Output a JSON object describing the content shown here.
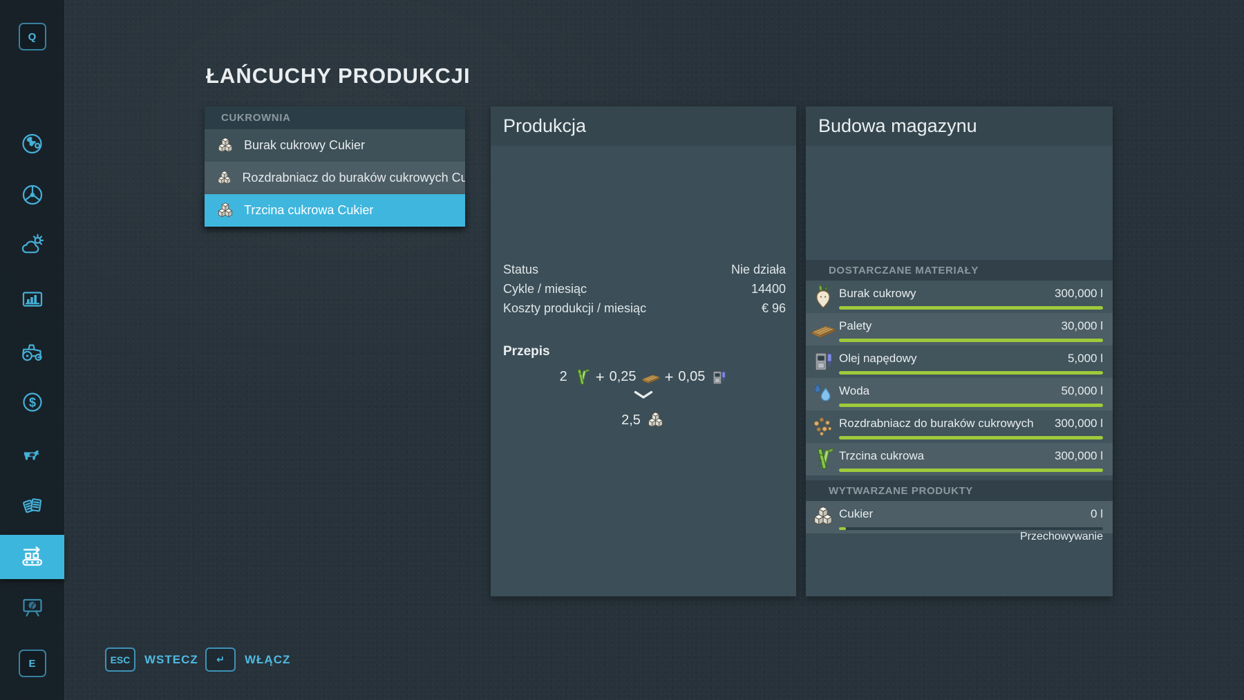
{
  "title": "ŁAŃCUCHY PRODUKCJI",
  "sidebar": {
    "top_key": "Q",
    "bottom_key": "E",
    "items": [
      {
        "icon": "q-key"
      },
      {
        "icon": "map-globe"
      },
      {
        "icon": "vehicles-steering-wheel"
      },
      {
        "icon": "weather-cloud-sun"
      },
      {
        "icon": "statistics-monitor"
      },
      {
        "icon": "garage-tractor"
      },
      {
        "icon": "finances-dollar"
      },
      {
        "icon": "animals-cow"
      },
      {
        "icon": "contracts-documents"
      },
      {
        "icon": "production-chains-conveyor",
        "active": true
      },
      {
        "icon": "construction-board"
      },
      {
        "icon": "e-key"
      }
    ]
  },
  "list": {
    "header": "CUKROWNIA",
    "items": [
      {
        "label": "Burak cukrowy Cukier",
        "icon": "sugar-icon",
        "selected": false
      },
      {
        "label": "Rozdrabniacz do buraków cukrowych Cukier",
        "icon": "sugar-icon",
        "selected": false
      },
      {
        "label": "Trzcina cukrowa Cukier",
        "icon": "sugar-icon",
        "selected": true
      }
    ]
  },
  "production": {
    "title": "Produkcja",
    "stats": [
      {
        "label": "Status",
        "value": "Nie działa"
      },
      {
        "label": "Cykle / miesiąc",
        "value": "14400"
      },
      {
        "label": "Koszty produkcji / miesiąc",
        "value": "€ 96"
      }
    ],
    "recipe": {
      "heading": "Przepis",
      "plus": "+",
      "inputs": [
        {
          "amount": "2",
          "icon": "sugarcane-icon"
        },
        {
          "amount": "0,25",
          "icon": "pallet-icon"
        },
        {
          "amount": "0,05",
          "icon": "diesel-icon"
        }
      ],
      "output": {
        "amount": "2,5",
        "icon": "sugar-icon"
      }
    }
  },
  "storage": {
    "title": "Budowa magazynu",
    "materials_header": "DOSTARCZANE MATERIAŁY",
    "materials": [
      {
        "label": "Burak cukrowy",
        "value": "300,000 l",
        "icon": "sugar-beet-icon",
        "fill_pct": 100
      },
      {
        "label": "Palety",
        "value": "30,000 l",
        "icon": "pallet-icon",
        "fill_pct": 100
      },
      {
        "label": "Olej napędowy",
        "value": "5,000 l",
        "icon": "diesel-icon",
        "fill_pct": 100
      },
      {
        "label": "Woda",
        "value": "50,000 l",
        "icon": "water-icon",
        "fill_pct": 100
      },
      {
        "label": "Rozdrabniacz do buraków cukrowych",
        "value": "300,000 l",
        "icon": "beet-pulp-icon",
        "fill_pct": 100
      },
      {
        "label": "Trzcina cukrowa",
        "value": "300,000 l",
        "icon": "sugarcane-icon",
        "fill_pct": 100
      }
    ],
    "products_header": "WYTWARZANE PRODUKTY",
    "product": {
      "label": "Cukier",
      "value": "0 l",
      "icon": "sugar-icon",
      "fill_pct": 2.5,
      "note": "Przechowywanie"
    }
  },
  "footer": {
    "back_key": "ESC",
    "back_label": "WSTECZ",
    "activate_key": "↵",
    "activate_label": "WŁĄCZ"
  },
  "colors": {
    "accent_cyan": "#3db6de",
    "icon_cyan": "#45b0d8",
    "bar_green": "#9ecb3b",
    "panel": "#3c4e57",
    "background": "#27323a"
  }
}
